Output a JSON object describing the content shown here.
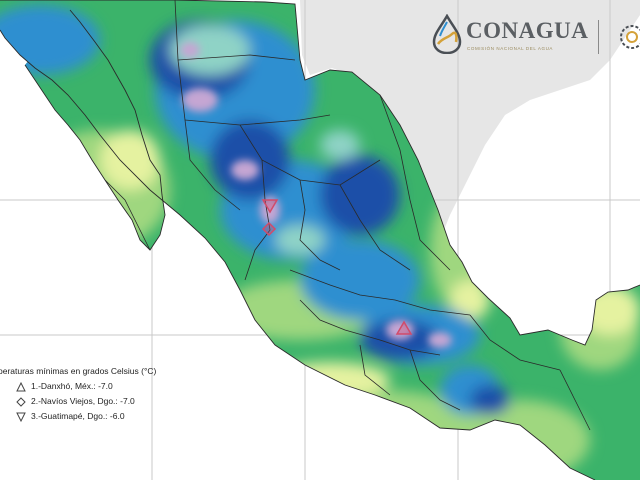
{
  "brand": {
    "name": "CONAGUA",
    "subtitle": "COMISIÓN NACIONAL DEL AGUA"
  },
  "legend": {
    "title": "peraturas mínimas en grados Celsius (°C)",
    "items": [
      {
        "symbol": "triangle-up",
        "label": "1.-Danxhó, Méx.: -7.0"
      },
      {
        "symbol": "diamond",
        "label": "2.-Navíos Viejos, Dgo.: -7.0"
      },
      {
        "symbol": "triangle-down",
        "label": "3.-Guatimapé, Dgo.: -6.0"
      }
    ]
  },
  "colors": {
    "ocean": "#ffffff",
    "gridline": "#c9c9c9",
    "land_neighbor": "#e6e6e6",
    "very_cold": "#c5a6d3",
    "cold": "#1e4fa8",
    "cool": "#2f8fd0",
    "mild": "#8fd3c6",
    "mid": "#3bb36a",
    "warm": "#9fd77f",
    "hot": "#e5f2a0",
    "border": "#2a2a2a",
    "marker": "#d24b6a"
  }
}
